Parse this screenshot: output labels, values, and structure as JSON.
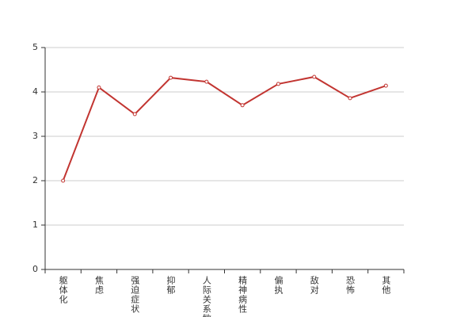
{
  "chart_data": {
    "type": "line",
    "categories": [
      "躯体化",
      "焦虑",
      "强迫症状",
      "抑郁",
      "人际关系敏感",
      "精神病性",
      "偏执",
      "敌对",
      "恐怖",
      "其他"
    ],
    "values": [
      2.0,
      4.1,
      3.5,
      4.32,
      4.23,
      3.7,
      4.18,
      4.34,
      3.86,
      4.14
    ],
    "color": "#c23531",
    "ylim": [
      0,
      5
    ],
    "yticks": [
      0,
      1,
      2,
      3,
      4,
      5
    ],
    "grid": true
  }
}
